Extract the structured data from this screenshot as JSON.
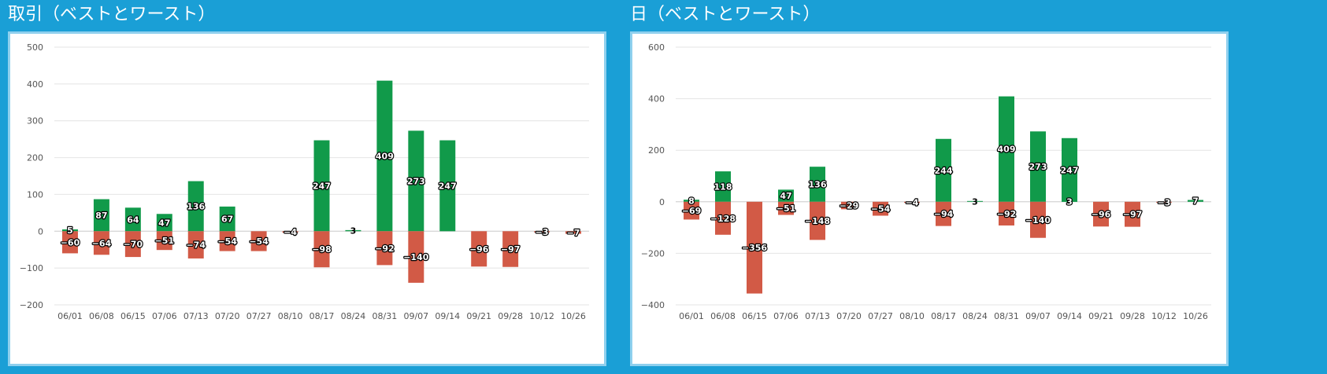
{
  "colors": {
    "positive": "#119a4a",
    "negative": "#d25a46",
    "frame": "#1a9fd6",
    "grid": "#e4e4e4"
  },
  "chart_data": [
    {
      "type": "bar",
      "title": "取引（ベストとワースト）",
      "categories": [
        "06/01",
        "06/08",
        "06/15",
        "07/06",
        "07/13",
        "07/20",
        "07/27",
        "08/10",
        "08/17",
        "08/24",
        "08/31",
        "09/07",
        "09/14",
        "09/21",
        "09/28",
        "10/12",
        "10/26"
      ],
      "series": [
        {
          "values": [
            5,
            87,
            64,
            47,
            136,
            67,
            null,
            null,
            247,
            3,
            409,
            273,
            247,
            null,
            null,
            null,
            -7
          ]
        },
        {
          "values": [
            -60,
            -64,
            -70,
            -51,
            -74,
            -54,
            -54,
            -4,
            -98,
            null,
            -92,
            -140,
            null,
            -96,
            -97,
            -3,
            null
          ]
        }
      ],
      "ylim": [
        -200,
        500
      ],
      "yticks": [
        500,
        400,
        300,
        200,
        100,
        0,
        -100,
        -200
      ],
      "ytick_labels": [
        "500",
        "400",
        "300",
        "200",
        "100",
        "0",
        "−100",
        "−200"
      ],
      "grid": true,
      "legend": "none"
    },
    {
      "type": "bar",
      "title": "日（ベストとワースト）",
      "categories": [
        "06/01",
        "06/08",
        "06/15",
        "07/06",
        "07/13",
        "07/20",
        "07/27",
        "08/10",
        "08/17",
        "08/24",
        "08/31",
        "09/07",
        "09/14",
        "09/21",
        "09/28",
        "10/12",
        "10/26"
      ],
      "series": [
        {
          "values": [
            8,
            118,
            null,
            47,
            136,
            null,
            null,
            null,
            244,
            3,
            409,
            273,
            247,
            null,
            null,
            null,
            7
          ]
        },
        {
          "values": [
            -69,
            -128,
            -356,
            -51,
            -148,
            -29,
            -54,
            -4,
            -94,
            null,
            -92,
            -140,
            3,
            -96,
            -97,
            -3,
            null
          ]
        }
      ],
      "ylim": [
        -400,
        600
      ],
      "yticks": [
        600,
        400,
        200,
        0,
        -200,
        -400
      ],
      "ytick_labels": [
        "600",
        "400",
        "200",
        "0",
        "−200",
        "−400"
      ],
      "grid": true,
      "legend": "none"
    }
  ]
}
